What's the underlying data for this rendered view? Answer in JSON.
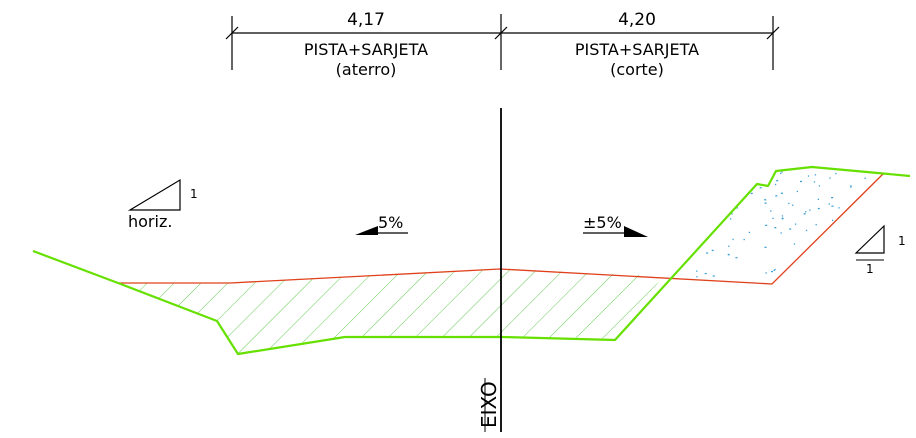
{
  "dimensions": {
    "left": {
      "value": "4,17",
      "label_line1": "PISTA+SARJETA",
      "label_line2": "(aterro)"
    },
    "right": {
      "value": "4,20",
      "label_line1": "PISTA+SARJETA",
      "label_line2": "(corte)"
    }
  },
  "slopes": {
    "left": "5%",
    "right": "±5%"
  },
  "legend": {
    "horizontal_label": "horiz.",
    "vertical_label": "1",
    "right_triangle_vertical": "1",
    "right_triangle_horizontal": "1"
  },
  "axis_label": "EIXO",
  "colors": {
    "terrain": "#66e000",
    "design": "#e0401a",
    "lines": "#000000",
    "speckle": "#3aa0d8",
    "hatch": "#66cc55"
  }
}
